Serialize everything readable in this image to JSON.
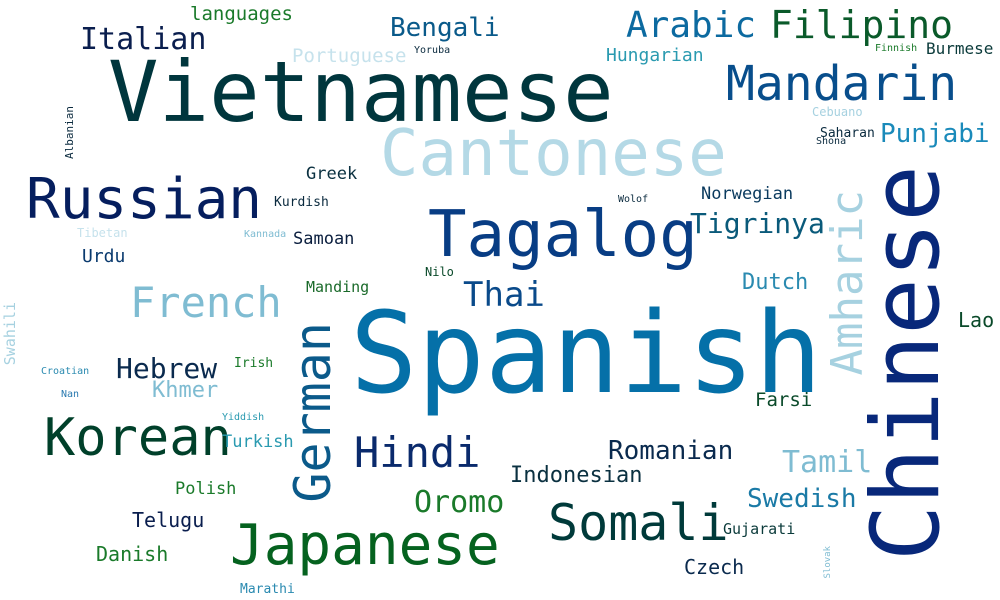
{
  "words": {
    "spanish": {
      "text": "Spanish",
      "color": "#0570a8"
    },
    "vietnamese": {
      "text": "Vietnamese",
      "color": "#00363d"
    },
    "chinese": {
      "text": "Chinese",
      "color": "#08287a"
    },
    "cantonese": {
      "text": "Cantonese",
      "color": "#b4d9e6"
    },
    "tagalog": {
      "text": "Tagalog",
      "color": "#083d84"
    },
    "mandarin": {
      "text": "Mandarin",
      "color": "#084e8c"
    },
    "russian": {
      "text": "Russian",
      "color": "#051e5e"
    },
    "japanese": {
      "text": "Japanese",
      "color": "#05621f"
    },
    "korean": {
      "text": "Korean",
      "color": "#00402a"
    },
    "german": {
      "text": "German",
      "color": "#0b5a8a"
    },
    "somali": {
      "text": "Somali",
      "color": "#003a3a"
    },
    "amharic": {
      "text": "Amharic",
      "color": "#a6d1e0"
    },
    "french": {
      "text": "French",
      "color": "#7fbcd2"
    },
    "hindi": {
      "text": "Hindi",
      "color": "#0a2a6c"
    },
    "arabic": {
      "text": "Arabic",
      "color": "#0c6aa0"
    },
    "filipino": {
      "text": "Filipino",
      "color": "#0a5a2a"
    },
    "italian": {
      "text": "Italian",
      "color": "#0a1e4e"
    },
    "bengali": {
      "text": "Bengali",
      "color": "#0a5a8a"
    },
    "thai": {
      "text": "Thai",
      "color": "#0a4a8a"
    },
    "tigrinya": {
      "text": "Tigrinya",
      "color": "#0a5a7a"
    },
    "hebrew": {
      "text": "Hebrew",
      "color": "#0a2a4e"
    },
    "oromo": {
      "text": "Oromo",
      "color": "#1a7a2a"
    },
    "romanian": {
      "text": "Romanian",
      "color": "#0a2a4e"
    },
    "tamil": {
      "text": "Tamil",
      "color": "#7fbcd2"
    },
    "swedish": {
      "text": "Swedish",
      "color": "#1a7aa6"
    },
    "punjabi": {
      "text": "Punjabi",
      "color": "#1a8aba"
    },
    "indonesian": {
      "text": "Indonesian",
      "color": "#0a3040"
    },
    "khmer": {
      "text": "Khmer",
      "color": "#7fbcd2"
    },
    "dutch": {
      "text": "Dutch",
      "color": "#2a8ab0"
    },
    "telugu": {
      "text": "Telugu",
      "color": "#0a1e4e"
    },
    "czech": {
      "text": "Czech",
      "color": "#0a2a4e"
    },
    "danish": {
      "text": "Danish",
      "color": "#1a7a2a"
    },
    "polish": {
      "text": "Polish",
      "color": "#1a7a2a"
    },
    "turkish": {
      "text": "Turkish",
      "color": "#2a9ab0"
    },
    "farsi": {
      "text": "Farsi",
      "color": "#0a4a2a"
    },
    "lao": {
      "text": "Lao",
      "color": "#0a4a2a"
    },
    "languages": {
      "text": "languages",
      "color": "#1a7a2a"
    },
    "portuguese": {
      "text": "Portuguese",
      "color": "#c6e2ec"
    },
    "hungarian": {
      "text": "Hungarian",
      "color": "#2a9ab0"
    },
    "burmese": {
      "text": "Burmese",
      "color": "#0a3a3a"
    },
    "greek": {
      "text": "Greek",
      "color": "#0a3040"
    },
    "norwegian": {
      "text": "Norwegian",
      "color": "#0a3a5e"
    },
    "samoan": {
      "text": "Samoan",
      "color": "#0a1e3e"
    },
    "urdu": {
      "text": "Urdu",
      "color": "#0a3a6e"
    },
    "manding": {
      "text": "Manding",
      "color": "#1a6a2a"
    },
    "kurdish": {
      "text": "Kurdish",
      "color": "#0a2a3e"
    },
    "gujarati": {
      "text": "Gujarati",
      "color": "#0a3a3a"
    },
    "marathi": {
      "text": "Marathi",
      "color": "#2a8ab0"
    },
    "irish": {
      "text": "Irish",
      "color": "#1a7a2a"
    },
    "saharan": {
      "text": "Saharan",
      "color": "#0a2a3e"
    },
    "shona": {
      "text": "Shona",
      "color": "#0a2a3e"
    },
    "cebuano": {
      "text": "Cebuano",
      "color": "#a6d1e0"
    },
    "swahili": {
      "text": "Swahili",
      "color": "#a6d1e0"
    },
    "tibetan": {
      "text": "Tibetan",
      "color": "#c6e2ec"
    },
    "kannada": {
      "text": "Kannada",
      "color": "#7fbcd2"
    },
    "nilo": {
      "text": "Nilo",
      "color": "#0a4a2a"
    },
    "wolof": {
      "text": "Wolof",
      "color": "#0a2a3e"
    },
    "croatian": {
      "text": "Croatian",
      "color": "#2a8ab0"
    },
    "nan": {
      "text": "Nan",
      "color": "#2a7ab0"
    },
    "yiddish": {
      "text": "Yiddish",
      "color": "#2a9ab0"
    },
    "yoruba": {
      "text": "Yoruba",
      "color": "#0a2a3e"
    },
    "finnish": {
      "text": "Finnish",
      "color": "#1a7a2a"
    },
    "albanian": {
      "text": "Albanian",
      "color": "#0a2a3e"
    },
    "slovak": {
      "text": "Slovak",
      "color": "#7fbcd2"
    }
  }
}
